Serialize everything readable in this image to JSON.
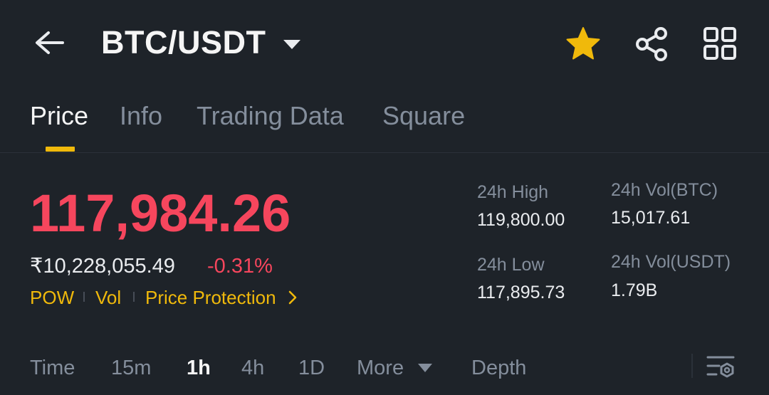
{
  "header": {
    "pair": "BTC/USDT",
    "icons": {
      "back": "arrow-left-icon",
      "caret": "caret-down-icon",
      "favorite": "star-icon",
      "share": "share-icon",
      "grid": "grid-icon"
    },
    "favorite_color": "#f0b90b"
  },
  "tabs": [
    {
      "label": "Price",
      "active": true
    },
    {
      "label": "Info",
      "active": false
    },
    {
      "label": "Trading Data",
      "active": false
    },
    {
      "label": "Square",
      "active": false
    }
  ],
  "price": {
    "last": "117,984.26",
    "fiat": "₹10,228,055.49",
    "change": "-0.31%",
    "tags": [
      "POW",
      "Vol",
      "Price Protection"
    ],
    "down_color": "#f6465d",
    "accent_color": "#f0b90b"
  },
  "stats": {
    "high_label": "24h High",
    "high_value": "119,800.00",
    "low_label": "24h Low",
    "low_value": "117,895.73",
    "vol_btc_label": "24h Vol(BTC)",
    "vol_btc_value": "15,017.61",
    "vol_usdt_label": "24h Vol(USDT)",
    "vol_usdt_value": "1.79B"
  },
  "intervals": {
    "items": [
      {
        "label": "Time",
        "active": false
      },
      {
        "label": "15m",
        "active": false
      },
      {
        "label": "1h",
        "active": true
      },
      {
        "label": "4h",
        "active": false
      },
      {
        "label": "1D",
        "active": false
      },
      {
        "label": "More",
        "active": false
      },
      {
        "label": "Depth",
        "active": false
      }
    ],
    "settings_icon": "chart-settings-icon"
  }
}
